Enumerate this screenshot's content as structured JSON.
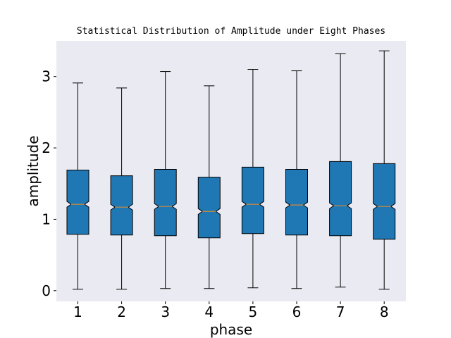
{
  "chart_data": {
    "type": "boxplot",
    "notched": true,
    "title": "Statistical Distribution of Amplitude under Eight Phases",
    "xlabel": "phase",
    "ylabel": "amplitude",
    "categories": [
      "1",
      "2",
      "3",
      "4",
      "5",
      "6",
      "7",
      "8"
    ],
    "ylim": [
      -0.15,
      3.5
    ],
    "yticks": [
      0,
      1,
      2,
      3
    ],
    "yticklabels": [
      "0",
      "1",
      "2",
      "3"
    ],
    "grid": false,
    "colors": {
      "box": "#1f77b4",
      "median": "#d08a3a",
      "plot_background": "#eaeaf2"
    },
    "boxes": [
      {
        "whislo": 0.02,
        "q1": 0.79,
        "med": 1.21,
        "q3": 1.69,
        "whishi": 2.91,
        "notch_lo": 1.17,
        "notch_hi": 1.25
      },
      {
        "whislo": 0.02,
        "q1": 0.78,
        "med": 1.17,
        "q3": 1.61,
        "whishi": 2.84,
        "notch_lo": 1.13,
        "notch_hi": 1.21
      },
      {
        "whislo": 0.03,
        "q1": 0.77,
        "med": 1.18,
        "q3": 1.7,
        "whishi": 3.07,
        "notch_lo": 1.14,
        "notch_hi": 1.22
      },
      {
        "whislo": 0.03,
        "q1": 0.74,
        "med": 1.11,
        "q3": 1.59,
        "whishi": 2.87,
        "notch_lo": 1.07,
        "notch_hi": 1.15
      },
      {
        "whislo": 0.04,
        "q1": 0.8,
        "med": 1.21,
        "q3": 1.73,
        "whishi": 3.1,
        "notch_lo": 1.17,
        "notch_hi": 1.25
      },
      {
        "whislo": 0.03,
        "q1": 0.78,
        "med": 1.2,
        "q3": 1.7,
        "whishi": 3.08,
        "notch_lo": 1.16,
        "notch_hi": 1.24
      },
      {
        "whislo": 0.05,
        "q1": 0.77,
        "med": 1.19,
        "q3": 1.81,
        "whishi": 3.32,
        "notch_lo": 1.15,
        "notch_hi": 1.23
      },
      {
        "whislo": 0.02,
        "q1": 0.72,
        "med": 1.18,
        "q3": 1.78,
        "whishi": 3.36,
        "notch_lo": 1.14,
        "notch_hi": 1.22
      }
    ]
  }
}
